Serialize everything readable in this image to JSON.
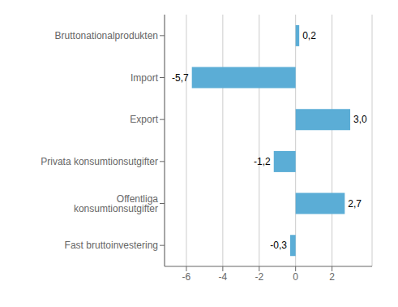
{
  "chart_data": {
    "type": "bar",
    "orientation": "horizontal",
    "categories": [
      "Bruttonationalprodukten",
      "Import",
      "Export",
      "Privata konsumtionsutgifter",
      "Offentliga konsumtionsutgifter",
      "Fast bruttoinvestering"
    ],
    "values": [
      0.2,
      -5.7,
      3.0,
      -1.2,
      2.7,
      -0.3
    ],
    "value_labels": [
      "0,2",
      "-5,7",
      "3,0",
      "-1,2",
      "2,7",
      "-0,3"
    ],
    "color": "#5BADD6",
    "xlim": [
      -7.2,
      4.2
    ],
    "xticks": [
      -6,
      -4,
      -2,
      0,
      2
    ],
    "grid": true,
    "data_labels": true
  }
}
